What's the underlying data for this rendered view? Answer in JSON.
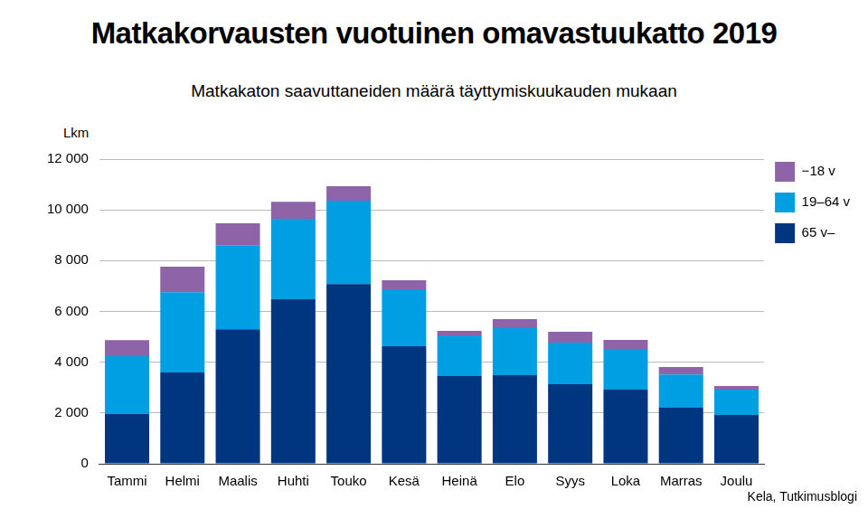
{
  "chart_data": {
    "type": "bar",
    "title": "Matkakorvausten vuotuinen omavastuukatto 2019",
    "subtitle": "Matkakaton saavuttaneiden määrä täyttymiskuukauden mukaan",
    "y_label": "Lkm",
    "source": "Kela, Tutkimusblogi",
    "categories": [
      "Tammi",
      "Helmi",
      "Maalis",
      "Huhti",
      "Touko",
      "Kesä",
      "Heinä",
      "Elo",
      "Syys",
      "Loka",
      "Marras",
      "Joulu"
    ],
    "series": [
      {
        "name": "65 v–",
        "color": "#003580",
        "values": [
          1960,
          3600,
          5300,
          6480,
          7080,
          4630,
          3450,
          3490,
          3130,
          2920,
          2210,
          1920
        ]
      },
      {
        "name": "19–64 v",
        "color": "#009fe3",
        "values": [
          2280,
          3160,
          3310,
          3170,
          3280,
          2240,
          1610,
          1850,
          1640,
          1600,
          1310,
          1000
        ]
      },
      {
        "name": "−18 v",
        "color": "#8e63a8",
        "values": [
          630,
          1000,
          860,
          670,
          570,
          360,
          170,
          360,
          430,
          360,
          290,
          140
        ]
      }
    ],
    "ylim": [
      0,
      12000
    ],
    "yticks": [
      0,
      {
        "value": 2000,
        "label": "2 000"
      },
      {
        "value": 4000,
        "label": "4 000"
      },
      {
        "value": 6000,
        "label": "6 000"
      },
      {
        "value": 8000,
        "label": "8 000"
      },
      {
        "value": 10000,
        "label": "10 000"
      },
      {
        "value": 12000,
        "label": "12 000"
      }
    ],
    "stacked": true,
    "grid": true,
    "legend": "right"
  }
}
